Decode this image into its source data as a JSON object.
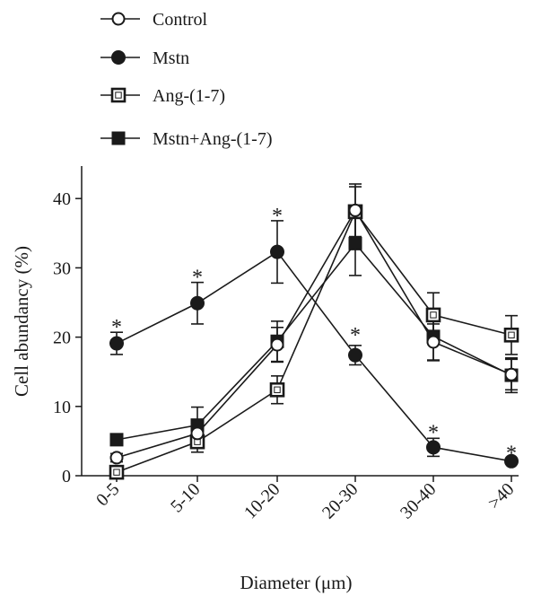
{
  "chart_data": {
    "type": "line",
    "title": "",
    "xlabel": "Diameter (μm)",
    "ylabel": "Cell abundancy (%)",
    "categories": [
      "0-5",
      "5-10",
      "10-20",
      "20-30",
      "30-40",
      ">40"
    ],
    "ylim": [
      0,
      45
    ],
    "yticks": [
      "0",
      "10",
      "20",
      "30",
      "40"
    ],
    "grid": false,
    "legend_position": "top-left",
    "series": [
      {
        "name": "Control",
        "marker": "open-circle",
        "values": [
          2.6,
          6.1,
          18.9,
          38.3,
          19.3,
          14.6
        ],
        "errors": [
          0.6,
          1.0,
          2.5,
          3.8,
          2.6,
          2.2
        ]
      },
      {
        "name": "Mstn",
        "marker": "filled-circle",
        "values": [
          19.1,
          24.9,
          32.3,
          17.4,
          4.1,
          2.1
        ],
        "errors": [
          1.6,
          3.0,
          4.5,
          1.4,
          1.3,
          0.3
        ]
      },
      {
        "name": "Ang-(1-7)",
        "marker": "open-square",
        "values": [
          0.5,
          4.9,
          12.4,
          38.1,
          23.2,
          20.3
        ],
        "errors": [
          0.4,
          1.5,
          2.0,
          3.6,
          3.2,
          2.8
        ]
      },
      {
        "name": "Mstn+Ang-(1-7)",
        "marker": "filled-square",
        "values": [
          5.2,
          7.3,
          19.4,
          33.5,
          20.1,
          14.5
        ],
        "errors": [
          0.6,
          2.6,
          2.9,
          4.6,
          3.5,
          2.5
        ]
      }
    ],
    "significance_marks": [
      {
        "category": "0-5",
        "label": "*"
      },
      {
        "category": "5-10",
        "label": "*"
      },
      {
        "category": "10-20",
        "label": "*"
      },
      {
        "category": "20-30",
        "label": "*"
      },
      {
        "category": "30-40",
        "label": "*"
      },
      {
        "category": ">40",
        "label": "*"
      }
    ],
    "colors": {
      "ink": "#1a1a1a",
      "background": "#ffffff"
    }
  }
}
